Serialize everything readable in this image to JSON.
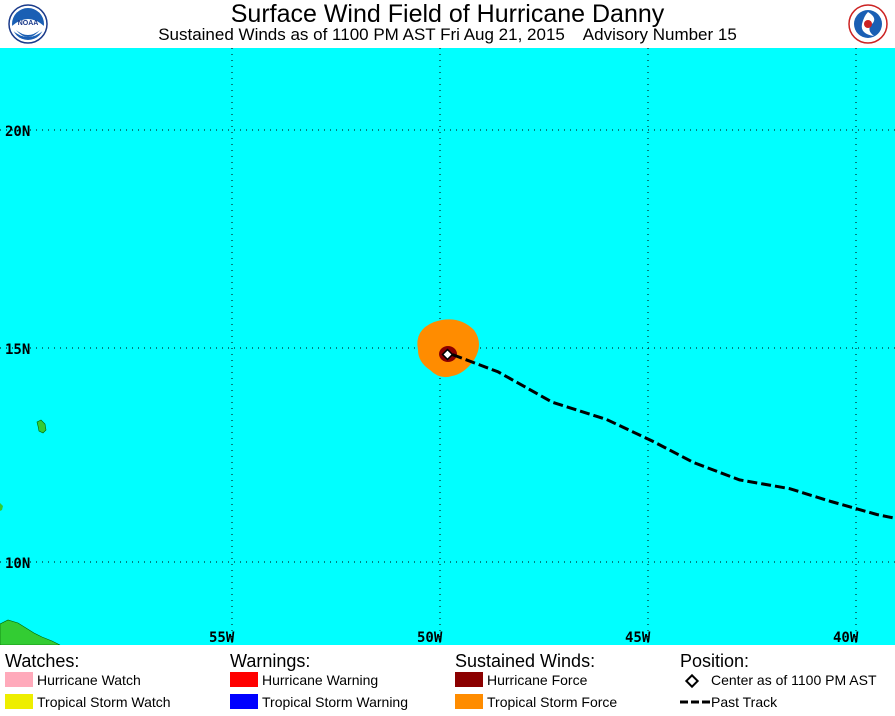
{
  "header": {
    "title": "Surface Wind Field of Hurricane Danny",
    "subtitle": "Sustained Winds as of 1100 PM AST Fri Aug 21, 2015    Advisory Number 15",
    "left_logo": "noaa-logo",
    "right_logo": "nws-logo"
  },
  "map": {
    "ocean_color": "#00ffff",
    "land_color": "#33cc33",
    "lat_labels": [
      "20N",
      "15N",
      "10N"
    ],
    "lon_labels": [
      "55W",
      "50W",
      "45W",
      "40W"
    ],
    "storm_center": {
      "lat": 14.9,
      "lon": 49.7
    },
    "past_track": [
      {
        "lat": 14.8,
        "lon": 49.7
      },
      {
        "lat": 14.4,
        "lon": 48.6
      },
      {
        "lat": 13.7,
        "lon": 47.3
      },
      {
        "lat": 13.3,
        "lon": 46.0
      },
      {
        "lat": 12.8,
        "lon": 44.9
      },
      {
        "lat": 12.3,
        "lon": 43.9
      },
      {
        "lat": 11.9,
        "lon": 42.8
      },
      {
        "lat": 11.7,
        "lon": 41.6
      },
      {
        "lat": 11.4,
        "lon": 40.6
      },
      {
        "lat": 11.1,
        "lon": 39.5
      },
      {
        "lat": 11.0,
        "lon": 39.0
      }
    ],
    "wind_colors": {
      "hurricane_force": "#8b0000",
      "tropical_storm_force": "#ff8c00"
    }
  },
  "legend": {
    "watches": {
      "heading": "Watches:",
      "items": [
        {
          "label": "Hurricane Watch",
          "color": "#ffaabb"
        },
        {
          "label": "Tropical Storm Watch",
          "color": "#eeee00"
        }
      ]
    },
    "warnings": {
      "heading": "Warnings:",
      "items": [
        {
          "label": "Hurricane Warning",
          "color": "#ff0000"
        },
        {
          "label": "Tropical Storm Warning",
          "color": "#0000ff"
        }
      ]
    },
    "sustained": {
      "heading": "Sustained Winds:",
      "items": [
        {
          "label": "Hurricane Force",
          "color": "#8b0000"
        },
        {
          "label": "Tropical Storm Force",
          "color": "#ff8c00"
        }
      ]
    },
    "position": {
      "heading": "Position:",
      "center_label": "Center as of 1100 PM AST",
      "track_label": "Past Track"
    }
  }
}
